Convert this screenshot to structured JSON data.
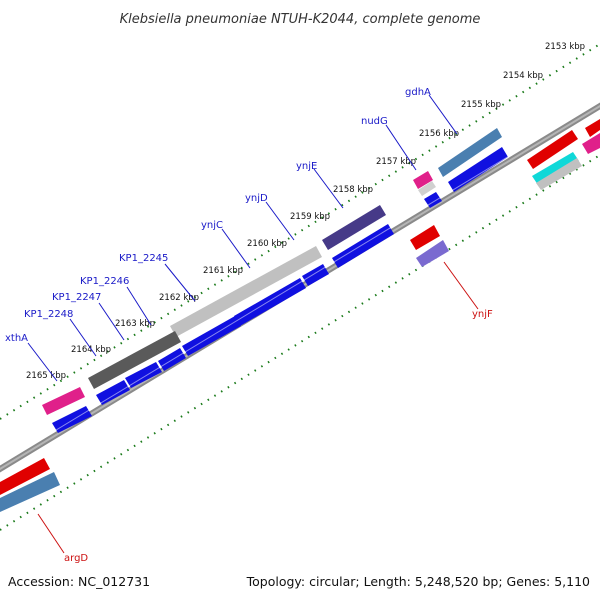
{
  "title": "Klebsiella pneumoniae NTUH-K2044, complete genome",
  "footer": {
    "accession": "Accession: NC_012731",
    "summary": "Topology: circular; Length: 5,248,520 bp; Genes: 5,110"
  },
  "ticks": [
    "2153 kbp",
    "2154 kbp",
    "2155 kbp",
    "2156 kbp",
    "2157 kbp",
    "2158 kbp",
    "2159 kbp",
    "2160 kbp",
    "2161 kbp",
    "2162 kbp",
    "2163 kbp",
    "2164 kbp",
    "2165 kbp"
  ],
  "gene_labels": {
    "gdhA": "gdhA",
    "nudG": "nudG",
    "ynjE": "ynjE",
    "ynjD": "ynjD",
    "ynjC": "ynjC",
    "KP1_2245": "KP1_2245",
    "KP1_2246": "KP1_2246",
    "KP1_2247": "KP1_2247",
    "KP1_2248": "KP1_2248",
    "xthA": "xthA",
    "ynjF": "ynjF",
    "argD": "argD"
  },
  "colors": {
    "forward_label": "#1a1ac8",
    "reverse_label": "#cc1111",
    "backbone": "#888888",
    "tick": "#1a7a1a",
    "cds_blue": "#1010e0",
    "red": "#e00000",
    "pink": "#e0208a",
    "steel": "#4a7fb0",
    "purple": "#4a3a8a",
    "gray_light": "#bcbcbc",
    "gray_dark": "#5a5a5a",
    "cyan": "#10d8d8",
    "lavender": "#7a6ad0"
  }
}
